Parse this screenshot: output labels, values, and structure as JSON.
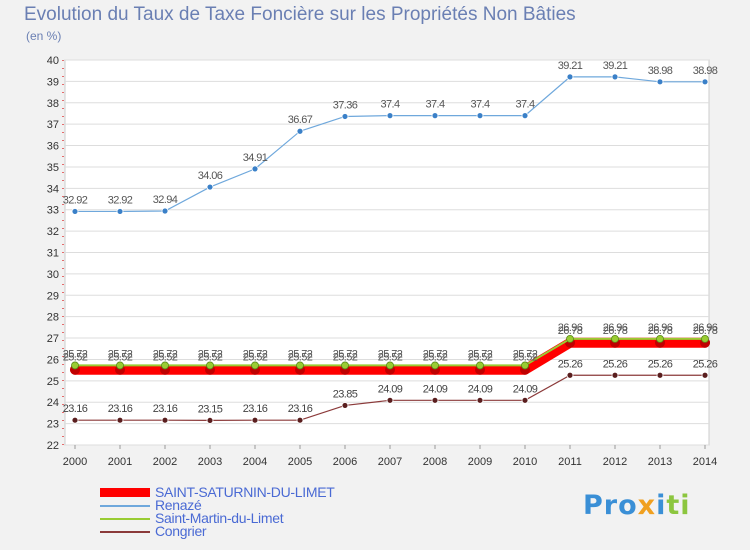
{
  "title": "Evolution du Taux de Taxe Foncière sur les Propriétés Non Bâties",
  "unit_label": "(en %)",
  "logo": {
    "part1": "Pro",
    "part2": "x",
    "part3": "i",
    "part4": "ti"
  },
  "chart_data": {
    "type": "line",
    "title": "Evolution du Taux de Taxe Foncière sur les Propriétés Non Bâties",
    "ylabel": "(en %)",
    "xlabel": "",
    "ylim": [
      22,
      40
    ],
    "yticks": [
      22,
      23,
      24,
      25,
      26,
      27,
      28,
      29,
      30,
      31,
      32,
      33,
      34,
      35,
      36,
      37,
      38,
      39,
      40
    ],
    "categories": [
      "2000",
      "2001",
      "2002",
      "2003",
      "2004",
      "2005",
      "2006",
      "2007",
      "2008",
      "2009",
      "2010",
      "2011",
      "2012",
      "2013",
      "2014"
    ],
    "series": [
      {
        "name": "SAINT-SATURNIN-DU-LIMET",
        "color": "#ff0000",
        "values": [
          25.52,
          25.52,
          25.52,
          25.52,
          25.52,
          25.52,
          25.52,
          25.52,
          25.52,
          25.52,
          25.52,
          26.78,
          26.78,
          26.78,
          26.78
        ],
        "labels": [
          "25.52",
          "25.52",
          "25.52",
          "25.52",
          "25.52",
          "25.52",
          "25.52",
          "25.52",
          "25.52",
          "25.52",
          "25.52",
          "26.78",
          "26.78",
          "26.78",
          "26.78"
        ]
      },
      {
        "name": "Renazé",
        "color": "#6fa8dc",
        "marker": "#3a80c8",
        "values": [
          32.92,
          32.92,
          32.94,
          34.06,
          34.91,
          36.67,
          37.36,
          37.4,
          37.4,
          37.4,
          37.4,
          39.21,
          39.21,
          38.98,
          38.98
        ],
        "labels": [
          "32.92",
          "32.92",
          "32.94",
          "34.06",
          "34.91",
          "36.67",
          "37.36",
          "37.4",
          "37.4",
          "37.4",
          "37.4",
          "39.21",
          "39.21",
          "38.98",
          "38.98"
        ]
      },
      {
        "name": "Saint-Martin-du-Limet",
        "color": "#99cc33",
        "values": [
          25.72,
          25.72,
          25.72,
          25.72,
          25.72,
          25.72,
          25.72,
          25.72,
          25.72,
          25.72,
          25.72,
          26.96,
          26.96,
          26.96,
          26.96
        ],
        "labels": [
          "25.72",
          "25.72",
          "25.72",
          "25.72",
          "25.72",
          "25.72",
          "25.72",
          "25.72",
          "25.72",
          "25.72",
          "25.72",
          "26.96",
          "26.96",
          "26.96",
          "26.96"
        ]
      },
      {
        "name": "Congrier",
        "color": "#8b3a3a",
        "marker": "#5a1e1e",
        "values": [
          23.16,
          23.16,
          23.16,
          23.15,
          23.16,
          23.16,
          23.85,
          24.09,
          24.09,
          24.09,
          24.09,
          25.26,
          25.26,
          25.26,
          25.26
        ],
        "labels": [
          "23.16",
          "23.16",
          "23.16",
          "23.15",
          "23.16",
          "23.16",
          "23.85",
          "24.09",
          "24.09",
          "24.09",
          "24.09",
          "25.26",
          "25.26",
          "25.26",
          "25.26"
        ]
      }
    ]
  }
}
